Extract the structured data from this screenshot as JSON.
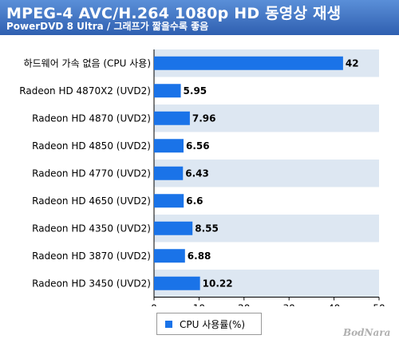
{
  "header": {
    "title": "MPEG-4 AVC/H.264 1080p HD 동영상 재생",
    "subtitle": "PowerDVD 8 Ultra / 그래프가 짧을수록 좋음"
  },
  "watermark": "BodNara",
  "colors": {
    "header_top": "#5a8fd8",
    "header_bottom": "#2f5fb0",
    "bar": "#1a73e8",
    "band": "#dde7f2"
  },
  "chart_data": {
    "type": "bar",
    "orientation": "horizontal",
    "categories": [
      "하드웨어 가속 없음 (CPU 사용)",
      "Radeon HD 4870X2 (UVD2)",
      "Radeon HD 4870 (UVD2)",
      "Radeon HD 4850 (UVD2)",
      "Radeon HD 4770 (UVD2)",
      "Radeon HD 4650 (UVD2)",
      "Radeon HD 4350 (UVD2)",
      "Radeon HD 3870 (UVD2)",
      "Radeon HD 3450 (UVD2)"
    ],
    "series": [
      {
        "name": "CPU 사용률(%)",
        "values": [
          42,
          5.95,
          7.96,
          6.56,
          6.43,
          6.6,
          8.55,
          6.88,
          10.22
        ]
      }
    ],
    "value_labels": [
      "42",
      "5.95",
      "7.96",
      "6.56",
      "6.43",
      "6.6",
      "8.55",
      "6.88",
      "10.22"
    ],
    "xlim": [
      0,
      50
    ],
    "xticks": [
      "0",
      "10",
      "20",
      "30",
      "40",
      "50"
    ],
    "legend_position": "bottom"
  }
}
